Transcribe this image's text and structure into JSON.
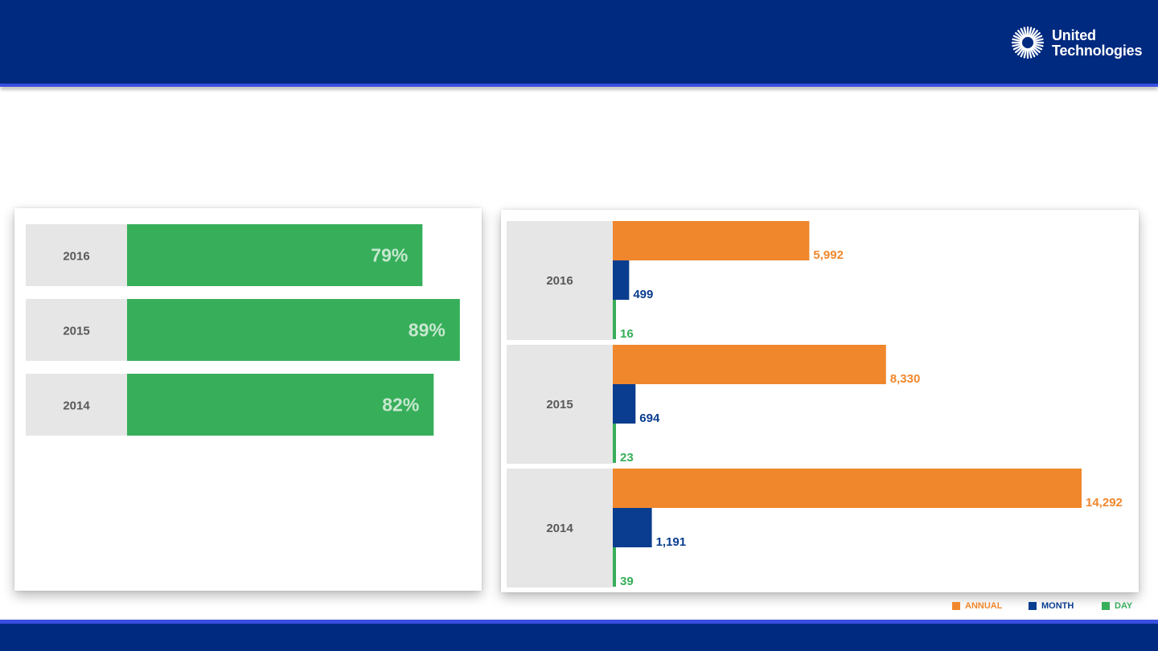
{
  "header": {
    "logo": {
      "line1": "United",
      "line2": "Technologies",
      "icon": "sunburst-logo-icon"
    }
  },
  "colors": {
    "brand_navy": "#002a80",
    "accent_stripe": "#3a4ee0",
    "category_bg": "#e6e6e6",
    "category_text": "#595959",
    "green": "#37ae5a",
    "pct_label": "#c6e8cf",
    "orange": "#f0872c",
    "blue": "#0a3d8f"
  },
  "chart_data": [
    {
      "type": "bar",
      "orientation": "horizontal",
      "categories": [
        "2016",
        "2015",
        "2014"
      ],
      "values": [
        79,
        89,
        82
      ],
      "value_labels": [
        "79%",
        "89%",
        "82%"
      ],
      "xlim": [
        0,
        100
      ],
      "grid": false,
      "title": "",
      "xlabel": "",
      "ylabel": ""
    },
    {
      "type": "bar",
      "orientation": "horizontal",
      "categories": [
        "2016",
        "2015",
        "2014"
      ],
      "series": [
        {
          "name": "ANNUAL",
          "values": [
            5992,
            8330,
            14292
          ],
          "labels": [
            "5,992",
            "8,330",
            "14,292"
          ],
          "color": "#f0872c"
        },
        {
          "name": "MONTH",
          "values": [
            499,
            694,
            1191
          ],
          "labels": [
            "499",
            "694",
            "1,191"
          ],
          "color": "#0a3d8f"
        },
        {
          "name": "DAY",
          "values": [
            16,
            23,
            39
          ],
          "labels": [
            "16",
            "23",
            "39"
          ],
          "color": "#37ae5a"
        }
      ],
      "xlim": [
        0,
        14292
      ],
      "grid": false,
      "legend": "bottom-right",
      "title": "",
      "xlabel": "",
      "ylabel": ""
    }
  ]
}
